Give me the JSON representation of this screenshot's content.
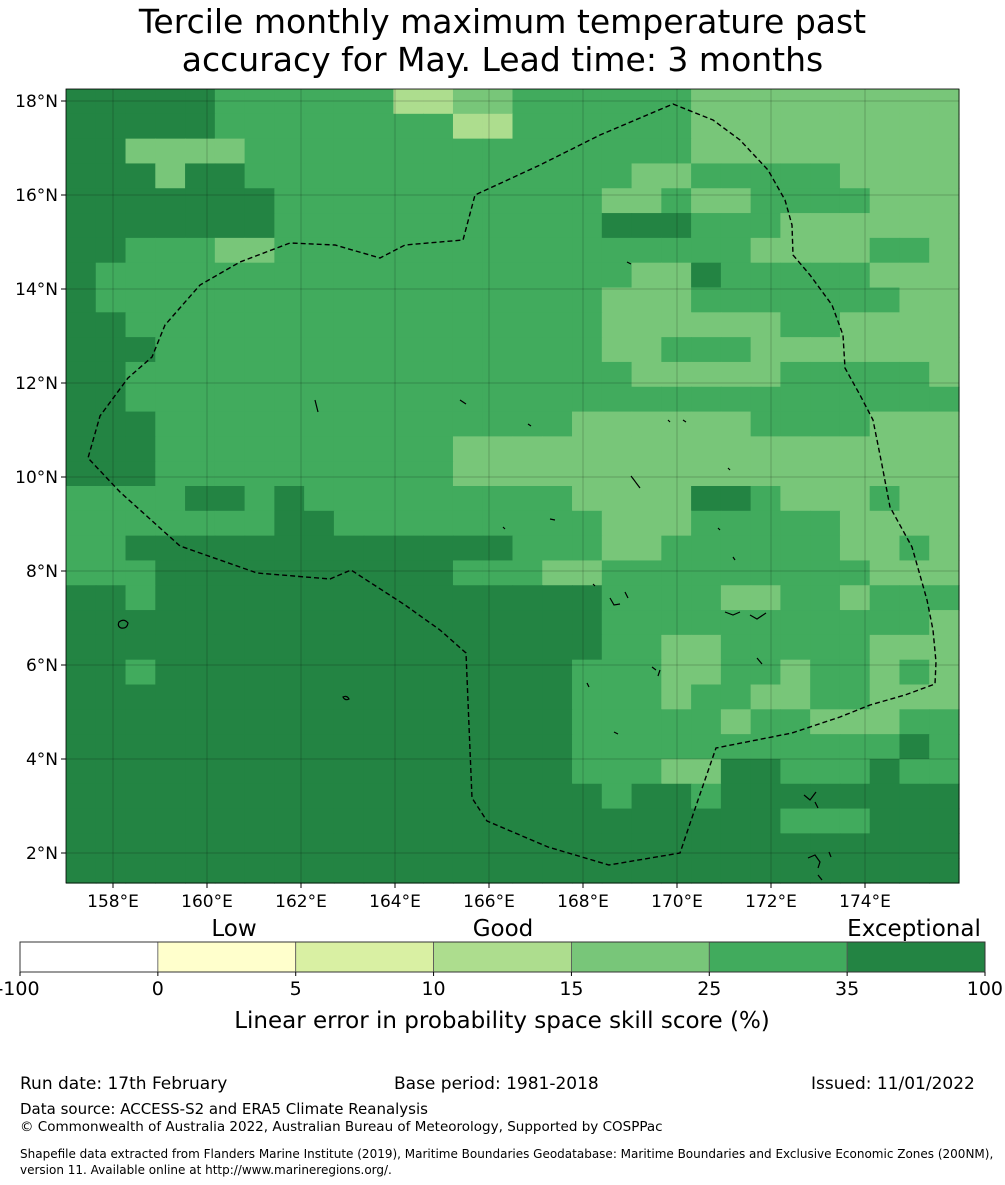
{
  "title": {
    "line1": "Tercile monthly maximum temperature past",
    "line2": "accuracy for May. Lead time: 3 months"
  },
  "map": {
    "lon_labels": [
      "158°E",
      "160°E",
      "162°E",
      "164°E",
      "166°E",
      "168°E",
      "170°E",
      "172°E",
      "174°E"
    ],
    "lat_labels": [
      "18°N",
      "16°N",
      "14°N",
      "12°N",
      "10°N",
      "8°N",
      "6°N",
      "4°N",
      "2°N"
    ],
    "palette": [
      "#ffffff",
      "#ffffcc",
      "#d9f0a3",
      "#addd8e",
      "#78c679",
      "#41ab5d",
      "#238443"
    ],
    "grid_value_key": "index into colorbar categories (0=-100..0, 1=0..5, 2=5..10, 3=10..15, 4=15..25, 5=25..35, 6=35..100)",
    "grid_rows": [
      "666665555553344555555444444444",
      "666665555555533555555444444444",
      "664444555555555555555444444444",
      "666466555555555555544555554444",
      "666666655555555555445445555444",
      "666666655555555555666555444444",
      "665554455555555555555554444554",
      "655555555555555555544655555444",
      "655555555555555555444555555544",
      "665555555555555555444444554444",
      "666555555555555555445554444444",
      "665555555555555555544444555554",
      "665555555555555555555555555555",
      "666555555555555554444445555444",
      "666555555555544444444444444444",
      "666555555555544444444444444444",
      "555566565555555554444665444544",
      "555555566555555555444555554444",
      "556666666666666555445555554454",
      "555666666666655544555555555444",
      "665666666666666666555544554555",
      "666666666666666666555555555554",
      "666666666666666666554455555444",
      "665666666666666665554455455454",
      "666666666666666665554554455444",
      "666666666666666665555545544455",
      "666666666666666665555555555565",
      "666666666666666665554466555655",
      "666666666666666666566566666666",
      "666666666666666666666666555666",
      "666666666666666666666666666666",
      "666666666666666666666666666666"
    ]
  },
  "colorbar": {
    "category_labels": [
      "Low",
      "Good",
      "Exceptional"
    ],
    "tick_labels": [
      "-100",
      "0",
      "5",
      "10",
      "15",
      "25",
      "35",
      "100"
    ],
    "title": "Linear error in probability space skill score (%)"
  },
  "footer": {
    "run_date": "Run date: 17th February",
    "base_period": "Base period: 1981-2018",
    "issued": "Issued: 11/01/2022",
    "data_source": "Data source: ACCESS-S2 and ERA5 Climate Reanalysis",
    "copyright": "© Commonwealth of Australia 2022, Australian Bureau of Meteorology, Supported by COSPPac",
    "shapefile_line1": "Shapefile data extracted from Flanders Marine Institute (2019), Maritime Boundaries Geodatabase: Maritime Boundaries and Exclusive Economic Zones (200NM),",
    "shapefile_line2": "version 11. Available online at http://www.marineregions.org/."
  }
}
